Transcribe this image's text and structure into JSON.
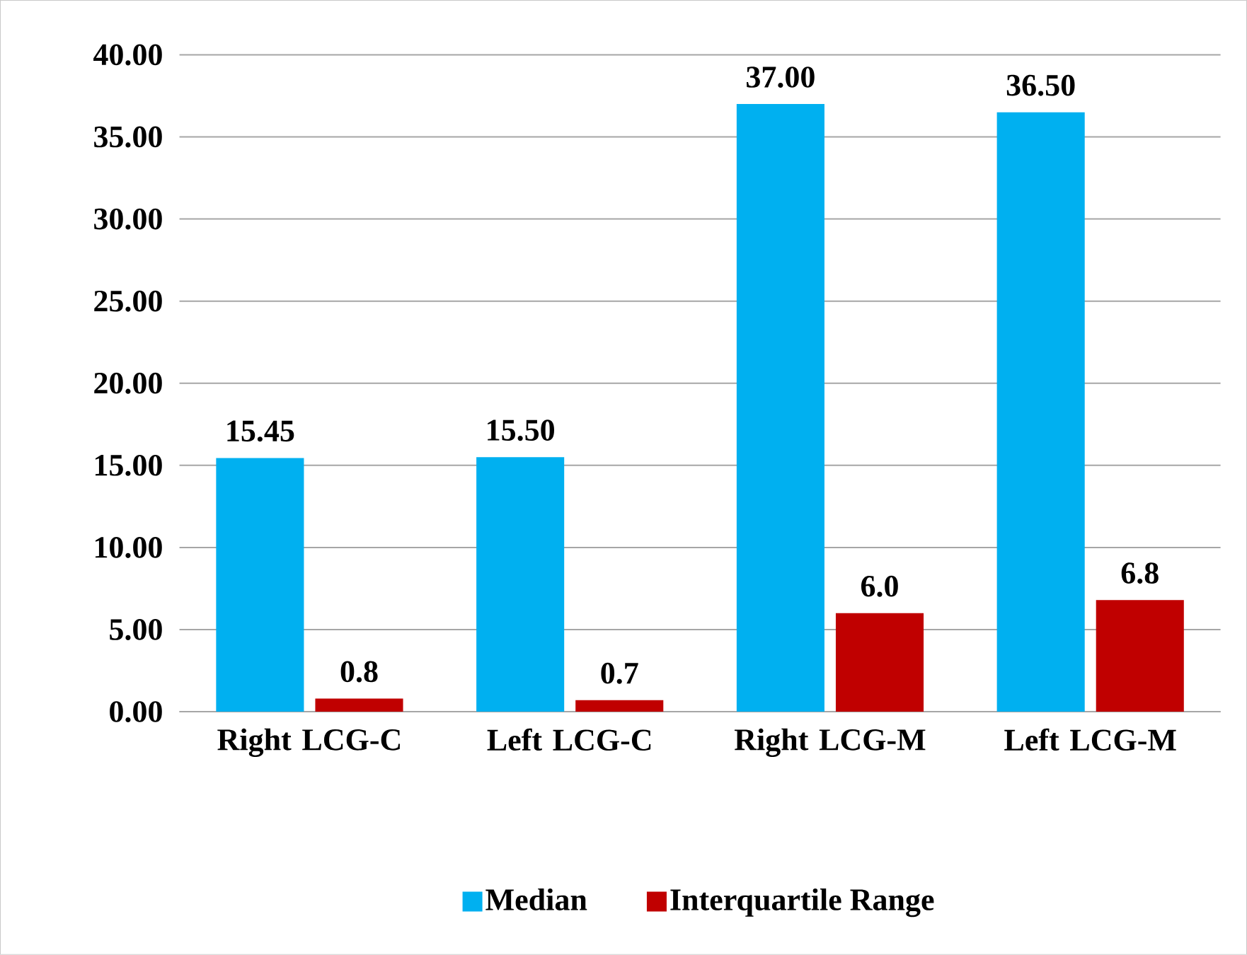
{
  "chart_data": {
    "type": "bar",
    "categories": [
      "Right LCG-C",
      "Left LCG-C",
      "Right LCG-M",
      "Left LCG-M"
    ],
    "series": [
      {
        "name": "Median",
        "color": "#00b0f0",
        "values": [
          15.45,
          15.5,
          37,
          36.5
        ],
        "value_labels": [
          "15.45",
          "15.50",
          "37.00",
          "36.50"
        ]
      },
      {
        "name": "Interquartile Range",
        "color": "#c00000",
        "values": [
          0.8,
          0.7,
          6.0,
          6.8
        ],
        "value_labels": [
          "0.8",
          "0.7",
          "6.0",
          "6.8"
        ]
      }
    ],
    "ylim": [
      0,
      40
    ],
    "yticks": [
      {
        "value": 0,
        "label": "0.00"
      },
      {
        "value": 5,
        "label": "5.00"
      },
      {
        "value": 10,
        "label": "10.00"
      },
      {
        "value": 15,
        "label": "15.00"
      },
      {
        "value": 20,
        "label": "20.00"
      },
      {
        "value": 25,
        "label": "25.00"
      },
      {
        "value": 30,
        "label": "30.00"
      },
      {
        "value": 35,
        "label": "35.00"
      },
      {
        "value": 40,
        "label": "40.00"
      }
    ],
    "grid": "y",
    "legend": "bottom"
  }
}
